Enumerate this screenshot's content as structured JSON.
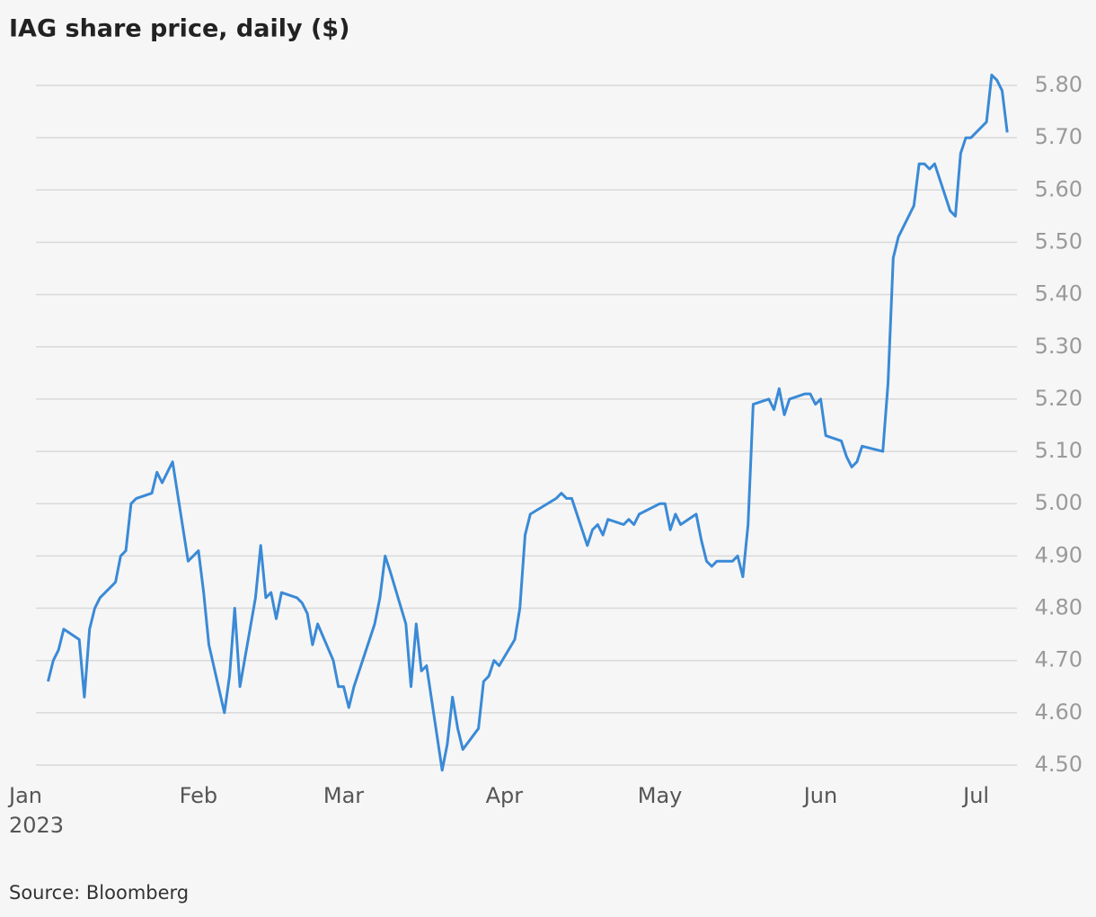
{
  "chart_data": {
    "type": "line",
    "title": "IAG share price, daily ($)",
    "source": "Source: Bloomberg",
    "color": "#3a8ad6",
    "x": [
      2,
      3,
      4,
      5,
      8,
      9,
      10,
      11,
      12,
      15,
      16,
      17,
      18,
      19,
      22,
      23,
      24,
      26,
      29,
      31,
      32,
      33,
      36,
      37,
      38,
      39,
      42,
      43,
      44,
      45,
      46,
      47,
      50,
      51,
      52,
      53,
      54,
      57,
      58,
      59,
      60,
      61,
      65,
      66,
      67,
      68,
      71,
      72,
      73,
      74,
      75,
      78,
      79,
      80,
      81,
      82,
      85,
      86,
      87,
      88,
      89,
      92,
      93,
      94,
      95,
      100,
      101,
      102,
      103,
      106,
      107,
      108,
      109,
      110,
      113,
      114,
      115,
      116,
      120,
      121,
      122,
      123,
      124,
      127,
      128,
      129,
      130,
      131,
      134,
      135,
      136,
      137,
      138,
      141,
      142,
      143,
      144,
      145,
      148,
      149,
      150,
      151,
      152,
      155,
      156,
      157,
      158,
      159,
      163,
      164,
      165,
      166,
      169,
      170,
      171,
      172,
      173,
      176,
      177,
      178,
      179,
      180,
      183,
      184,
      185,
      186,
      187
    ],
    "values": [
      4.66,
      4.7,
      4.72,
      4.76,
      4.74,
      4.63,
      4.76,
      4.8,
      4.82,
      4.85,
      4.9,
      4.91,
      5.0,
      5.01,
      5.02,
      5.06,
      5.04,
      5.08,
      4.89,
      4.91,
      4.83,
      4.73,
      4.6,
      4.67,
      4.8,
      4.65,
      4.82,
      4.92,
      4.82,
      4.83,
      4.78,
      4.83,
      4.82,
      4.81,
      4.79,
      4.73,
      4.77,
      4.7,
      4.65,
      4.65,
      4.61,
      4.65,
      4.77,
      4.82,
      4.9,
      4.87,
      4.77,
      4.65,
      4.77,
      4.68,
      4.69,
      4.49,
      4.54,
      4.63,
      4.57,
      4.53,
      4.57,
      4.66,
      4.67,
      4.7,
      4.69,
      4.74,
      4.8,
      4.94,
      4.98,
      5.01,
      5.02,
      5.01,
      5.01,
      4.92,
      4.95,
      4.96,
      4.94,
      4.97,
      4.96,
      4.97,
      4.96,
      4.98,
      5.0,
      5.0,
      4.95,
      4.98,
      4.96,
      4.98,
      4.93,
      4.89,
      4.88,
      4.89,
      4.89,
      4.9,
      4.86,
      4.96,
      5.19,
      5.2,
      5.18,
      5.22,
      5.17,
      5.2,
      5.21,
      5.21,
      5.19,
      5.2,
      5.13,
      5.12,
      5.09,
      5.07,
      5.08,
      5.11,
      5.1,
      5.23,
      5.47,
      5.51,
      5.57,
      5.65,
      5.65,
      5.64,
      5.65,
      5.56,
      5.55,
      5.67,
      5.7,
      5.7,
      5.73,
      5.82,
      5.81,
      5.79,
      5.71
    ],
    "xlim": [
      0,
      188
    ],
    "xticks": [
      {
        "value": 0,
        "label": "Jan\n2023"
      },
      {
        "value": 31,
        "label": "Feb"
      },
      {
        "value": 59,
        "label": "Mar"
      },
      {
        "value": 90,
        "label": "Apr"
      },
      {
        "value": 120,
        "label": "May"
      },
      {
        "value": 151,
        "label": "Jun"
      },
      {
        "value": 181,
        "label": "Jul"
      }
    ],
    "ylim": [
      4.5,
      5.8
    ],
    "yticks": [
      {
        "value": 4.5,
        "label": "4.50"
      },
      {
        "value": 4.6,
        "label": "4.60"
      },
      {
        "value": 4.7,
        "label": "4.70"
      },
      {
        "value": 4.8,
        "label": "4.80"
      },
      {
        "value": 4.9,
        "label": "4.90"
      },
      {
        "value": 5.0,
        "label": "5.00"
      },
      {
        "value": 5.1,
        "label": "5.10"
      },
      {
        "value": 5.2,
        "label": "5.20"
      },
      {
        "value": 5.3,
        "label": "5.30"
      },
      {
        "value": 5.4,
        "label": "5.40"
      },
      {
        "value": 5.5,
        "label": "5.50"
      },
      {
        "value": 5.6,
        "label": "5.60"
      },
      {
        "value": 5.7,
        "label": "5.70"
      },
      {
        "value": 5.8,
        "label": "5.80"
      }
    ],
    "grid": true
  }
}
